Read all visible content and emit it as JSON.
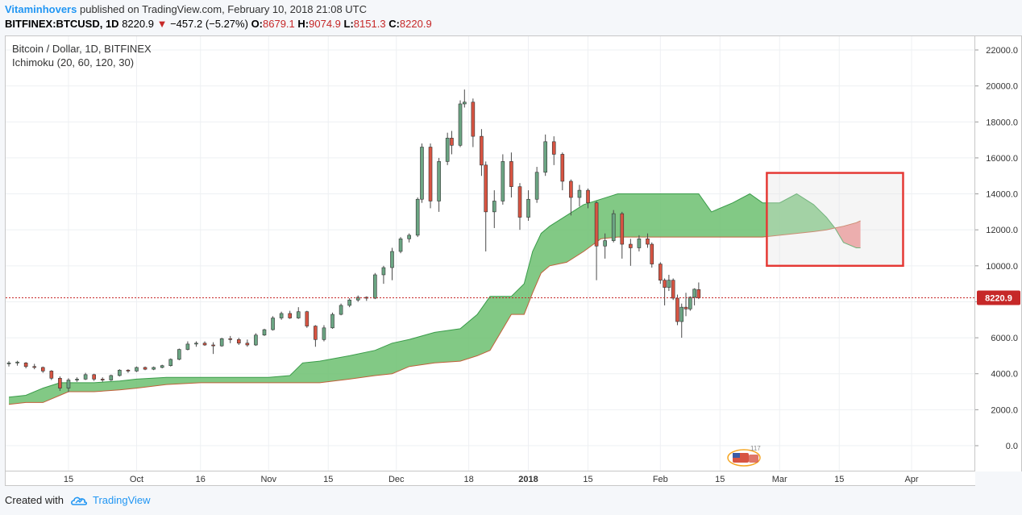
{
  "header": {
    "author": "Vitaminhovers",
    "published": "published on TradingView.com, February 10, 2018 21:08 UTC",
    "symbol": "BITFINEX:BTCUSD, 1D",
    "last": "8220.9",
    "change": "−457.2 (−5.27%)",
    "o_label": "O:",
    "o_value": "8679.1",
    "h_label": "H:",
    "h_value": "9074.9",
    "l_label": "L:",
    "l_value": "8151.3",
    "c_label": "C:",
    "c_value": "8220.9"
  },
  "legend": {
    "title": "Bitcoin / Dollar, 1D, BITFINEX",
    "indicator": "Ichimoku (20, 60, 120, 30)"
  },
  "footer": {
    "created_with": "Created with",
    "brand": "TradingView"
  },
  "colors": {
    "up": "#6ba583",
    "down": "#d75442",
    "cloud_bull": "#6cc070",
    "cloud_bear": "#f08080",
    "price_line": "#c62828",
    "highlight_box": "#e53935"
  },
  "chart_data": {
    "type": "candlestick",
    "title": "Bitcoin / Dollar, 1D, BITFINEX",
    "ylim": [
      -1500,
      23000
    ],
    "y_ticks": [
      "0.0",
      "2000.0",
      "4000.0",
      "6000.0",
      "8000.0",
      "10000.0",
      "12000.0",
      "14000.0",
      "16000.0",
      "18000.0",
      "20000.0",
      "22000.0"
    ],
    "x_tick_labels": [
      "15",
      "Oct",
      "16",
      "Nov",
      "15",
      "Dec",
      "18",
      "2018",
      "15",
      "Feb",
      "15",
      "Mar",
      "15",
      "Apr"
    ],
    "x_range": [
      "2017-09-01",
      "2018-04-15"
    ],
    "x_ticks": [
      "2017-09-15",
      "2017-10-01",
      "2017-10-16",
      "2017-11-01",
      "2017-11-15",
      "2017-12-01",
      "2017-12-18",
      "2018-01-01",
      "2018-01-15",
      "2018-02-01",
      "2018-02-15",
      "2018-03-01",
      "2018-03-15",
      "2018-04-01"
    ],
    "last_price": 8220.9,
    "last_price_label": "8220.9",
    "watermark_label": "117",
    "candles": [
      {
        "date": "2017-09-01",
        "o": 4550,
        "h": 4700,
        "l": 4400,
        "c": 4600
      },
      {
        "date": "2017-09-03",
        "o": 4600,
        "h": 4720,
        "l": 4450,
        "c": 4650
      },
      {
        "date": "2017-09-05",
        "o": 4600,
        "h": 4650,
        "l": 4300,
        "c": 4400
      },
      {
        "date": "2017-09-07",
        "o": 4400,
        "h": 4550,
        "l": 4250,
        "c": 4350
      },
      {
        "date": "2017-09-09",
        "o": 4350,
        "h": 4400,
        "l": 4050,
        "c": 4150
      },
      {
        "date": "2017-09-11",
        "o": 4150,
        "h": 4200,
        "l": 3650,
        "c": 3750
      },
      {
        "date": "2017-09-13",
        "o": 3750,
        "h": 3850,
        "l": 3050,
        "c": 3200
      },
      {
        "date": "2017-09-15",
        "o": 3200,
        "h": 3750,
        "l": 2980,
        "c": 3650
      },
      {
        "date": "2017-09-17",
        "o": 3650,
        "h": 3800,
        "l": 3550,
        "c": 3700
      },
      {
        "date": "2017-09-19",
        "o": 3700,
        "h": 4050,
        "l": 3650,
        "c": 3950
      },
      {
        "date": "2017-09-21",
        "o": 3950,
        "h": 4000,
        "l": 3600,
        "c": 3700
      },
      {
        "date": "2017-09-23",
        "o": 3700,
        "h": 3800,
        "l": 3550,
        "c": 3650
      },
      {
        "date": "2017-09-25",
        "o": 3650,
        "h": 3950,
        "l": 3600,
        "c": 3900
      },
      {
        "date": "2017-09-27",
        "o": 3900,
        "h": 4250,
        "l": 3850,
        "c": 4200
      },
      {
        "date": "2017-09-29",
        "o": 4200,
        "h": 4250,
        "l": 4050,
        "c": 4150
      },
      {
        "date": "2017-10-01",
        "o": 4150,
        "h": 4400,
        "l": 4100,
        "c": 4350
      },
      {
        "date": "2017-10-03",
        "o": 4350,
        "h": 4400,
        "l": 4200,
        "c": 4250
      },
      {
        "date": "2017-10-05",
        "o": 4250,
        "h": 4400,
        "l": 4200,
        "c": 4350
      },
      {
        "date": "2017-10-07",
        "o": 4350,
        "h": 4500,
        "l": 4300,
        "c": 4450
      },
      {
        "date": "2017-10-09",
        "o": 4450,
        "h": 4850,
        "l": 4400,
        "c": 4800
      },
      {
        "date": "2017-10-11",
        "o": 4800,
        "h": 5400,
        "l": 4750,
        "c": 5350
      },
      {
        "date": "2017-10-13",
        "o": 5350,
        "h": 5800,
        "l": 5300,
        "c": 5650
      },
      {
        "date": "2017-10-15",
        "o": 5650,
        "h": 5800,
        "l": 5500,
        "c": 5700
      },
      {
        "date": "2017-10-17",
        "o": 5700,
        "h": 5800,
        "l": 5550,
        "c": 5600
      },
      {
        "date": "2017-10-19",
        "o": 5600,
        "h": 5750,
        "l": 5100,
        "c": 5550
      },
      {
        "date": "2017-10-21",
        "o": 5550,
        "h": 6000,
        "l": 5500,
        "c": 5950
      },
      {
        "date": "2017-10-23",
        "o": 5950,
        "h": 6100,
        "l": 5700,
        "c": 5900
      },
      {
        "date": "2017-10-25",
        "o": 5900,
        "h": 6000,
        "l": 5600,
        "c": 5700
      },
      {
        "date": "2017-10-27",
        "o": 5700,
        "h": 5900,
        "l": 5500,
        "c": 5600
      },
      {
        "date": "2017-10-29",
        "o": 5600,
        "h": 6250,
        "l": 5550,
        "c": 6150
      },
      {
        "date": "2017-10-31",
        "o": 6150,
        "h": 6500,
        "l": 6100,
        "c": 6450
      },
      {
        "date": "2017-11-02",
        "o": 6450,
        "h": 7200,
        "l": 6400,
        "c": 7100
      },
      {
        "date": "2017-11-04",
        "o": 7100,
        "h": 7450,
        "l": 7000,
        "c": 7350
      },
      {
        "date": "2017-11-06",
        "o": 7350,
        "h": 7500,
        "l": 7050,
        "c": 7100
      },
      {
        "date": "2017-11-08",
        "o": 7100,
        "h": 7700,
        "l": 7050,
        "c": 7450
      },
      {
        "date": "2017-11-10",
        "o": 7450,
        "h": 7500,
        "l": 6550,
        "c": 6650
      },
      {
        "date": "2017-11-12",
        "o": 6650,
        "h": 6700,
        "l": 5500,
        "c": 5900
      },
      {
        "date": "2017-11-14",
        "o": 5900,
        "h": 6700,
        "l": 5800,
        "c": 6550
      },
      {
        "date": "2017-11-16",
        "o": 6550,
        "h": 7400,
        "l": 6500,
        "c": 7300
      },
      {
        "date": "2017-11-18",
        "o": 7300,
        "h": 7900,
        "l": 7250,
        "c": 7800
      },
      {
        "date": "2017-11-20",
        "o": 7800,
        "h": 8200,
        "l": 7700,
        "c": 8100
      },
      {
        "date": "2017-11-22",
        "o": 8100,
        "h": 8350,
        "l": 8000,
        "c": 8250
      },
      {
        "date": "2017-11-24",
        "o": 8250,
        "h": 8300,
        "l": 8050,
        "c": 8200
      },
      {
        "date": "2017-11-26",
        "o": 8200,
        "h": 9600,
        "l": 8150,
        "c": 9500
      },
      {
        "date": "2017-11-28",
        "o": 9500,
        "h": 10000,
        "l": 9000,
        "c": 9900
      },
      {
        "date": "2017-11-30",
        "o": 9900,
        "h": 11000,
        "l": 9200,
        "c": 10800
      },
      {
        "date": "2017-12-02",
        "o": 10800,
        "h": 11600,
        "l": 10700,
        "c": 11500
      },
      {
        "date": "2017-12-04",
        "o": 11500,
        "h": 11800,
        "l": 11300,
        "c": 11700
      },
      {
        "date": "2017-12-06",
        "o": 11700,
        "h": 13800,
        "l": 11600,
        "c": 13700
      },
      {
        "date": "2017-12-07",
        "o": 13700,
        "h": 16800,
        "l": 13500,
        "c": 16600
      },
      {
        "date": "2017-12-09",
        "o": 16600,
        "h": 16800,
        "l": 13200,
        "c": 13600
      },
      {
        "date": "2017-12-11",
        "o": 13600,
        "h": 16000,
        "l": 13000,
        "c": 15800
      },
      {
        "date": "2017-12-13",
        "o": 15800,
        "h": 17400,
        "l": 15600,
        "c": 17100
      },
      {
        "date": "2017-12-14",
        "o": 17100,
        "h": 17500,
        "l": 16200,
        "c": 16700
      },
      {
        "date": "2017-12-16",
        "o": 16700,
        "h": 19200,
        "l": 16600,
        "c": 19000
      },
      {
        "date": "2017-12-17",
        "o": 19000,
        "h": 19800,
        "l": 18800,
        "c": 19100
      },
      {
        "date": "2017-12-19",
        "o": 19100,
        "h": 19300,
        "l": 16600,
        "c": 17200
      },
      {
        "date": "2017-12-21",
        "o": 17200,
        "h": 17600,
        "l": 15000,
        "c": 15600
      },
      {
        "date": "2017-12-22",
        "o": 15600,
        "h": 15800,
        "l": 10800,
        "c": 13000
      },
      {
        "date": "2017-12-24",
        "o": 13000,
        "h": 14200,
        "l": 12100,
        "c": 13600
      },
      {
        "date": "2017-12-26",
        "o": 13600,
        "h": 16200,
        "l": 13400,
        "c": 15800
      },
      {
        "date": "2017-12-28",
        "o": 15800,
        "h": 16300,
        "l": 13800,
        "c": 14400
      },
      {
        "date": "2017-12-30",
        "o": 14400,
        "h": 14600,
        "l": 12000,
        "c": 12700
      },
      {
        "date": "2018-01-01",
        "o": 12700,
        "h": 14200,
        "l": 12500,
        "c": 13700
      },
      {
        "date": "2018-01-03",
        "o": 13700,
        "h": 15500,
        "l": 13500,
        "c": 15200
      },
      {
        "date": "2018-01-05",
        "o": 15200,
        "h": 17300,
        "l": 15000,
        "c": 16900
      },
      {
        "date": "2018-01-07",
        "o": 16900,
        "h": 17200,
        "l": 15600,
        "c": 16200
      },
      {
        "date": "2018-01-09",
        "o": 16200,
        "h": 16300,
        "l": 14200,
        "c": 14700
      },
      {
        "date": "2018-01-11",
        "o": 14700,
        "h": 14800,
        "l": 12800,
        "c": 13800
      },
      {
        "date": "2018-01-13",
        "o": 13800,
        "h": 14500,
        "l": 13300,
        "c": 14200
      },
      {
        "date": "2018-01-15",
        "o": 14200,
        "h": 14300,
        "l": 13200,
        "c": 13500
      },
      {
        "date": "2018-01-17",
        "o": 13500,
        "h": 13600,
        "l": 9200,
        "c": 11100
      },
      {
        "date": "2018-01-19",
        "o": 11100,
        "h": 11800,
        "l": 10400,
        "c": 11400
      },
      {
        "date": "2018-01-21",
        "o": 11400,
        "h": 13100,
        "l": 11300,
        "c": 12900
      },
      {
        "date": "2018-01-23",
        "o": 12900,
        "h": 13000,
        "l": 10400,
        "c": 11200
      },
      {
        "date": "2018-01-25",
        "o": 11200,
        "h": 11500,
        "l": 10000,
        "c": 11000
      },
      {
        "date": "2018-01-27",
        "o": 11000,
        "h": 11700,
        "l": 10800,
        "c": 11500
      },
      {
        "date": "2018-01-29",
        "o": 11500,
        "h": 11800,
        "l": 11000,
        "c": 11200
      },
      {
        "date": "2018-01-30",
        "o": 11200,
        "h": 11300,
        "l": 9900,
        "c": 10100
      },
      {
        "date": "2018-02-01",
        "o": 10100,
        "h": 10200,
        "l": 9000,
        "c": 9200
      },
      {
        "date": "2018-02-02",
        "o": 9200,
        "h": 9300,
        "l": 7800,
        "c": 8800
      },
      {
        "date": "2018-02-03",
        "o": 8800,
        "h": 9500,
        "l": 8600,
        "c": 9200
      },
      {
        "date": "2018-02-04",
        "o": 9200,
        "h": 9300,
        "l": 8100,
        "c": 8200
      },
      {
        "date": "2018-02-05",
        "o": 8200,
        "h": 8400,
        "l": 6700,
        "c": 6900
      },
      {
        "date": "2018-02-06",
        "o": 6900,
        "h": 7900,
        "l": 6000,
        "c": 7700
      },
      {
        "date": "2018-02-07",
        "o": 7700,
        "h": 8500,
        "l": 7200,
        "c": 7600
      },
      {
        "date": "2018-02-08",
        "o": 7600,
        "h": 8300,
        "l": 7500,
        "c": 8250
      },
      {
        "date": "2018-02-09",
        "o": 8250,
        "h": 8750,
        "l": 7800,
        "c": 8700
      },
      {
        "date": "2018-02-10",
        "o": 8679.1,
        "h": 9074.9,
        "l": 8151.3,
        "c": 8220.9
      }
    ],
    "cloud": [
      {
        "date": "2017-09-01",
        "a": 2700,
        "b": 2300
      },
      {
        "date": "2017-09-05",
        "a": 2800,
        "b": 2400
      },
      {
        "date": "2017-09-09",
        "a": 3200,
        "b": 2400
      },
      {
        "date": "2017-09-13",
        "a": 3500,
        "b": 2800
      },
      {
        "date": "2017-09-15",
        "a": 3500,
        "b": 3000
      },
      {
        "date": "2017-09-21",
        "a": 3500,
        "b": 3000
      },
      {
        "date": "2017-09-27",
        "a": 3600,
        "b": 3100
      },
      {
        "date": "2017-10-01",
        "a": 3700,
        "b": 3200
      },
      {
        "date": "2017-10-08",
        "a": 3800,
        "b": 3400
      },
      {
        "date": "2017-10-16",
        "a": 3800,
        "b": 3500
      },
      {
        "date": "2017-10-24",
        "a": 3800,
        "b": 3500
      },
      {
        "date": "2017-11-01",
        "a": 3800,
        "b": 3500
      },
      {
        "date": "2017-11-06",
        "a": 3900,
        "b": 3500
      },
      {
        "date": "2017-11-09",
        "a": 4600,
        "b": 3500
      },
      {
        "date": "2017-11-13",
        "a": 4700,
        "b": 3500
      },
      {
        "date": "2017-11-20",
        "a": 5000,
        "b": 3700
      },
      {
        "date": "2017-11-26",
        "a": 5300,
        "b": 3900
      },
      {
        "date": "2017-11-30",
        "a": 5700,
        "b": 4000
      },
      {
        "date": "2017-12-04",
        "a": 5900,
        "b": 4400
      },
      {
        "date": "2017-12-10",
        "a": 6300,
        "b": 4600
      },
      {
        "date": "2017-12-16",
        "a": 6500,
        "b": 4700
      },
      {
        "date": "2017-12-20",
        "a": 7300,
        "b": 5000
      },
      {
        "date": "2017-12-23",
        "a": 8300,
        "b": 5300
      },
      {
        "date": "2017-12-28",
        "a": 8300,
        "b": 7300
      },
      {
        "date": "2017-12-31",
        "a": 9000,
        "b": 7300
      },
      {
        "date": "2018-01-02",
        "a": 10800,
        "b": 8500
      },
      {
        "date": "2018-01-04",
        "a": 11800,
        "b": 9600
      },
      {
        "date": "2018-01-06",
        "a": 12200,
        "b": 10000
      },
      {
        "date": "2018-01-10",
        "a": 12800,
        "b": 10200
      },
      {
        "date": "2018-01-14",
        "a": 13400,
        "b": 10800
      },
      {
        "date": "2018-01-18",
        "a": 13700,
        "b": 11500
      },
      {
        "date": "2018-01-22",
        "a": 14000,
        "b": 11600
      },
      {
        "date": "2018-02-01",
        "a": 14000,
        "b": 11600
      },
      {
        "date": "2018-02-10",
        "a": 14000,
        "b": 11600
      },
      {
        "date": "2018-02-13",
        "a": 13000,
        "b": 11600
      },
      {
        "date": "2018-02-18",
        "a": 13500,
        "b": 11600
      },
      {
        "date": "2018-02-22",
        "a": 14000,
        "b": 11600
      },
      {
        "date": "2018-02-25",
        "a": 13500,
        "b": 11600
      },
      {
        "date": "2018-03-01",
        "a": 13500,
        "b": 11700
      },
      {
        "date": "2018-03-05",
        "a": 14000,
        "b": 11800
      },
      {
        "date": "2018-03-09",
        "a": 13400,
        "b": 11900
      },
      {
        "date": "2018-03-12",
        "a": 12700,
        "b": 12000
      },
      {
        "date": "2018-03-14",
        "a": 12100,
        "b": 12100
      },
      {
        "date": "2018-03-16",
        "a": 11300,
        "b": 12200
      },
      {
        "date": "2018-03-19",
        "a": 11000,
        "b": 12400
      },
      {
        "date": "2018-03-20",
        "a": 11000,
        "b": 12500
      }
    ]
  }
}
